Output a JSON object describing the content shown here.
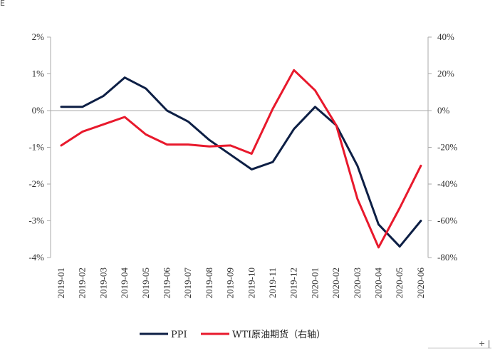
{
  "chart_data": {
    "type": "line",
    "categories": [
      "2019-01",
      "2019-02",
      "2019-03",
      "2019-04",
      "2019-05",
      "2019-06",
      "2019-07",
      "2019-08",
      "2019-09",
      "2019-10",
      "2019-11",
      "2019-12",
      "2020-01",
      "2020-02",
      "2020-03",
      "2020-04",
      "2020-05",
      "2020-06"
    ],
    "y_left": {
      "ylim": [
        -4,
        2
      ],
      "ticks": [
        "2%",
        "1%",
        "0%",
        "-1%",
        "-2%",
        "-3%",
        "-4%"
      ],
      "tick_values": [
        2,
        1,
        0,
        -1,
        -2,
        -3,
        -4
      ]
    },
    "y_right": {
      "ylim": [
        -80,
        40
      ],
      "ticks": [
        "40%",
        "20%",
        "0%",
        "-20%",
        "-40%",
        "-60%",
        "-80%"
      ],
      "tick_values": [
        40,
        20,
        0,
        -20,
        -40,
        -60,
        -80
      ]
    },
    "series": [
      {
        "name": "PPI",
        "axis": "left",
        "color": "#0d1f45",
        "values": [
          0.1,
          0.1,
          0.4,
          0.9,
          0.6,
          0.0,
          -0.3,
          -0.8,
          -1.2,
          -1.6,
          -1.4,
          -0.5,
          0.1,
          -0.4,
          -1.5,
          -3.1,
          -3.7,
          -3.0
        ]
      },
      {
        "name": "WTI原油期货（右轴）",
        "axis": "right",
        "color": "#e8192c",
        "values": [
          -19,
          -11.5,
          -7.5,
          -3.5,
          -13,
          -18.5,
          -18.5,
          -19.5,
          -19,
          -23.5,
          1,
          22,
          11,
          -8,
          -48,
          -74.5,
          -53,
          -30
        ]
      }
    ],
    "legend_position": "bottom",
    "grid": false,
    "title": "",
    "xlabel": "",
    "ylabel": ""
  },
  "stray_marks": {
    "top_left": "E",
    "bottom_right": "+ |"
  }
}
